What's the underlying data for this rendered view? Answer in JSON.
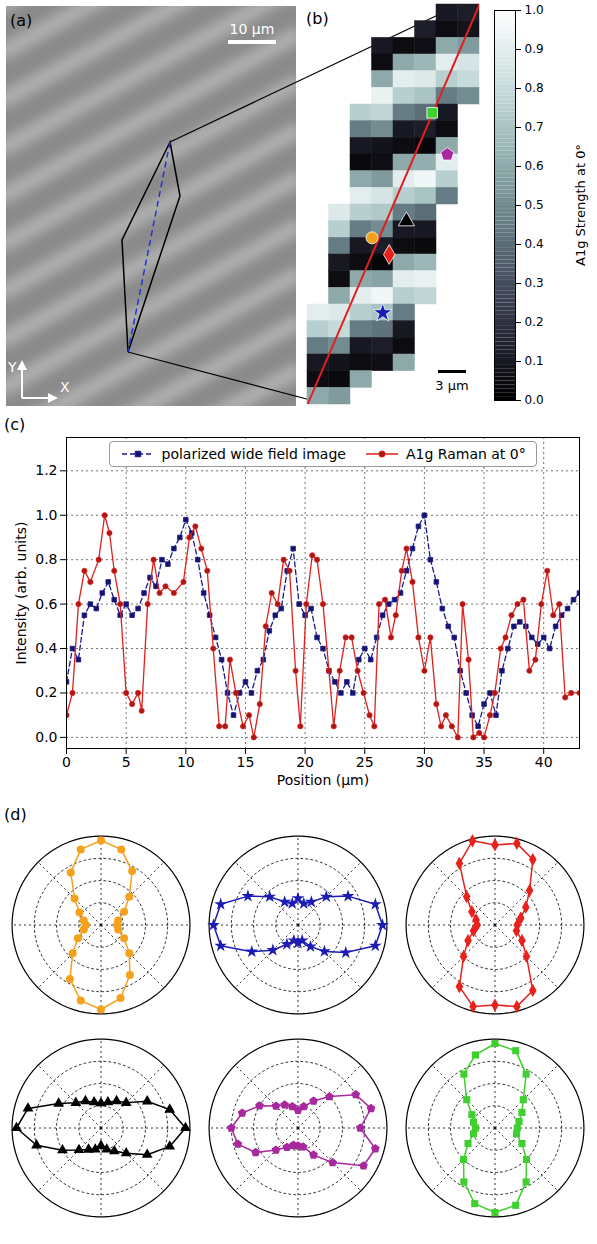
{
  "chart_data": [
    {
      "type": "image",
      "panel": "(a)",
      "scale_bar": "10 μm",
      "axis_labels": {
        "x": "X",
        "y": "Y"
      }
    },
    {
      "type": "heatmap",
      "panel": "(b)",
      "scale_bar": "3 μm",
      "colorbar_label": "A1g Strength at 0°",
      "colorbar_range": [
        0,
        1
      ],
      "colorbar_ticks": [
        {
          "value": 0,
          "label": "0.0"
        },
        0.1,
        0.2,
        0.3,
        0.4,
        0.5,
        0.6,
        0.7,
        0.8,
        0.9,
        {
          "value": 1,
          "label": "1.0"
        }
      ],
      "cells": [
        [
          null,
          null,
          null,
          null,
          null,
          null,
          0.1,
          0.12
        ],
        [
          null,
          null,
          null,
          null,
          null,
          0.12,
          0.05,
          0.08
        ],
        [
          null,
          null,
          null,
          0.1,
          0.05,
          0.06,
          0.6,
          0.55
        ],
        [
          null,
          null,
          null,
          0.05,
          0.6,
          0.65,
          0.9,
          0.85
        ],
        [
          null,
          null,
          null,
          0.6,
          0.9,
          0.88,
          0.75,
          0.8
        ],
        [
          null,
          null,
          null,
          0.92,
          0.75,
          0.7,
          0.45,
          0.5
        ],
        [
          null,
          null,
          0.75,
          0.78,
          0.45,
          0.4,
          0.1,
          null
        ],
        [
          null,
          null,
          0.45,
          0.5,
          0.1,
          0.12,
          0.05,
          null
        ],
        [
          null,
          null,
          0.1,
          0.08,
          0.05,
          0.03,
          0.6,
          null
        ],
        [
          null,
          null,
          0.04,
          0.06,
          0.6,
          0.62,
          0.9,
          null
        ],
        [
          null,
          null,
          0.6,
          0.55,
          0.9,
          0.95,
          0.75,
          null
        ],
        [
          null,
          null,
          0.9,
          0.85,
          0.75,
          0.7,
          0.45,
          null
        ],
        [
          null,
          0.88,
          0.75,
          0.72,
          0.45,
          0.4,
          null,
          null
        ],
        [
          null,
          0.75,
          0.45,
          0.5,
          0.1,
          0.1,
          null,
          null
        ],
        [
          null,
          0.45,
          0.1,
          0.12,
          0.05,
          0.04,
          null,
          null
        ],
        [
          null,
          0.1,
          0.05,
          0.03,
          0.6,
          0.65,
          null,
          null
        ],
        [
          null,
          0.05,
          0.6,
          0.58,
          0.9,
          0.92,
          null,
          null
        ],
        [
          null,
          0.6,
          0.9,
          0.95,
          0.75,
          0.78,
          null,
          null
        ],
        [
          0.9,
          0.88,
          0.75,
          0.7,
          0.45,
          null,
          null,
          null
        ],
        [
          0.75,
          0.8,
          0.45,
          0.42,
          0.1,
          null,
          null,
          null
        ],
        [
          0.45,
          0.5,
          0.1,
          0.12,
          0.05,
          null,
          null,
          null
        ],
        [
          0.1,
          0.08,
          0.05,
          0.06,
          0.6,
          null,
          null,
          null
        ],
        [
          0.05,
          0.04,
          0.6,
          null,
          null,
          null,
          null,
          null
        ],
        [
          0.6,
          0.55,
          null,
          null,
          null,
          null,
          null,
          null
        ]
      ],
      "profile_line": {
        "color": "#e02020",
        "x": [
          0,
          8
        ],
        "y": [
          24,
          0
        ]
      },
      "points": [
        {
          "marker": "square",
          "color": "#3fcf2f",
          "x": 5.8,
          "y": 6.5
        },
        {
          "marker": "pentagon",
          "color": "#a8289e",
          "x": 6.5,
          "y": 9
        },
        {
          "marker": "triangle",
          "color": "#000000",
          "x": 4.6,
          "y": 13
        },
        {
          "marker": "circle",
          "color": "#f5a11c",
          "x": 3.0,
          "y": 14
        },
        {
          "marker": "diamond",
          "color": "#e8211b",
          "x": 3.8,
          "y": 15
        },
        {
          "marker": "star",
          "color": "#1c1cb4",
          "x": 3.5,
          "y": 18.5
        }
      ]
    },
    {
      "type": "line",
      "panel": "(c)",
      "x_label": "Position (μm)",
      "y_label": "Intensity (arb. units)",
      "xlim": [
        0,
        43
      ],
      "xticks": [
        0,
        5,
        10,
        15,
        20,
        25,
        30,
        35,
        40
      ],
      "ylim": [
        -0.05,
        1.35
      ],
      "yticks": [
        {
          "value": 0,
          "label": "0.0"
        },
        0.2,
        0.4,
        0.6,
        0.8,
        {
          "value": 1,
          "label": "1.0"
        },
        1.2
      ],
      "grid": true,
      "legend": "top",
      "series": [
        {
          "name": "polarized wide field image",
          "color": "#1a1a8c",
          "marker": "square",
          "line_style": "dashed",
          "x": [
            0,
            0.5,
            1,
            1.5,
            2,
            2.5,
            3,
            3.5,
            4,
            4.5,
            5,
            5.5,
            6,
            6.5,
            7,
            7.5,
            8,
            8.5,
            9,
            9.5,
            10,
            10.5,
            11,
            11.5,
            12,
            12.5,
            13,
            13.5,
            14,
            14.5,
            15,
            15.5,
            16,
            16.5,
            17,
            17.5,
            18,
            18.5,
            19,
            19.5,
            20,
            20.5,
            21,
            21.5,
            22,
            22.5,
            23,
            23.5,
            24,
            24.5,
            25,
            25.5,
            26,
            26.5,
            27,
            27.5,
            28,
            28.5,
            29,
            29.5,
            30,
            30.5,
            31,
            31.5,
            32,
            32.5,
            33,
            33.5,
            34,
            34.5,
            35,
            35.5,
            36,
            36.5,
            37,
            37.5,
            38,
            38.5,
            39,
            39.5,
            40,
            40.5,
            41,
            41.5,
            42,
            42.5,
            43
          ],
          "values": [
            0.25,
            0.4,
            0.35,
            0.55,
            0.6,
            0.58,
            0.65,
            0.7,
            0.62,
            0.55,
            0.6,
            0.55,
            0.58,
            0.65,
            0.72,
            0.68,
            0.8,
            0.78,
            0.85,
            0.9,
            0.98,
            0.92,
            0.8,
            0.65,
            0.55,
            0.45,
            0.35,
            0.2,
            0.1,
            0.2,
            0.25,
            0.2,
            0.3,
            0.35,
            0.48,
            0.55,
            0.58,
            0.75,
            0.85,
            0.6,
            0.55,
            0.58,
            0.45,
            0.4,
            0.3,
            0.25,
            0.2,
            0.25,
            0.2,
            0.35,
            0.4,
            0.35,
            0.45,
            0.55,
            0.6,
            0.62,
            0.65,
            0.75,
            0.85,
            0.95,
            1.0,
            0.8,
            0.7,
            0.58,
            0.5,
            0.45,
            0.3,
            0.2,
            0.1,
            0.05,
            0.15,
            0.2,
            0.1,
            0.3,
            0.4,
            0.5,
            0.52,
            0.5,
            0.45,
            0.42,
            0.45,
            0.4,
            0.5,
            0.55,
            0.58,
            0.62,
            0.65
          ]
        },
        {
          "name": "A1g Raman at 0°",
          "color": "#e0201c",
          "marker": "circle",
          "line_style": "solid",
          "x": [
            0,
            0.5,
            1,
            1.5,
            2,
            2.7,
            3.2,
            3.6,
            4,
            4.5,
            5,
            5.5,
            6,
            6.3,
            6.8,
            7.3,
            7.8,
            8.3,
            9,
            9.8,
            10.3,
            10.8,
            11.3,
            11.8,
            12.3,
            12.8,
            13.3,
            13.7,
            14.2,
            14.8,
            15.3,
            15.7,
            16.2,
            16.7,
            17.2,
            17.7,
            18.2,
            18.7,
            19.2,
            19.6,
            20.1,
            20.6,
            21,
            21.5,
            22,
            22.4,
            22.9,
            23.4,
            23.9,
            24.4,
            24.9,
            25.4,
            25.8,
            26.2,
            26.7,
            27.2,
            27.6,
            28.1,
            28.5,
            29,
            29.5,
            30,
            30.5,
            31,
            31.4,
            31.8,
            32.3,
            32.8,
            33.2,
            33.7,
            34.1,
            34.6,
            35,
            35.5,
            35.9,
            36.4,
            36.8,
            37.3,
            37.8,
            38.3,
            38.8,
            39.3,
            39.8,
            40.3,
            40.8,
            41.3,
            41.8,
            42.3,
            43
          ],
          "values": [
            0.1,
            0.2,
            0.6,
            0.75,
            0.7,
            0.8,
            1.0,
            0.92,
            0.75,
            0.6,
            0.2,
            0.15,
            0.2,
            0.12,
            0.6,
            0.8,
            0.65,
            0.68,
            0.65,
            0.7,
            0.9,
            0.95,
            0.85,
            0.75,
            0.4,
            0.05,
            0.05,
            0.35,
            0.2,
            0.05,
            0.1,
            0.0,
            0.15,
            0.5,
            0.65,
            0.6,
            0.8,
            0.75,
            0.3,
            0.05,
            0.6,
            0.82,
            0.8,
            0.6,
            0.3,
            0.05,
            0.3,
            0.45,
            0.45,
            0.3,
            0.2,
            0.1,
            0.05,
            0.6,
            0.62,
            0.45,
            0.55,
            0.75,
            0.85,
            0.7,
            0.45,
            0.3,
            0.45,
            0.15,
            0.05,
            0.1,
            0.05,
            0.0,
            0.6,
            0.35,
            0.0,
            0.02,
            0.0,
            0.1,
            0.2,
            0.4,
            0.45,
            0.55,
            0.6,
            0.62,
            0.3,
            0.35,
            0.6,
            0.75,
            0.55,
            0.6,
            0.18,
            0.2,
            0.2
          ]
        }
      ]
    },
    {
      "type": "polar",
      "panel": "(d)",
      "tick_labels": false,
      "grid": true,
      "rlim": [
        0,
        1
      ],
      "rticks": [
        0.25,
        0.5,
        0.75,
        1
      ],
      "theta_ticks": [
        0,
        45,
        90,
        135,
        180,
        225,
        270,
        315
      ],
      "theta": [
        0,
        15,
        30,
        45,
        60,
        75,
        90,
        105,
        120,
        135,
        150,
        165,
        180,
        195,
        210,
        225,
        240,
        255,
        270,
        285,
        300,
        315,
        330,
        345
      ],
      "series": [
        {
          "marker": "circle",
          "color": "#f5a11c",
          "values": [
            0.18,
            0.2,
            0.3,
            0.45,
            0.7,
            0.88,
            0.95,
            0.88,
            0.68,
            0.42,
            0.28,
            0.2,
            0.17,
            0.2,
            0.3,
            0.45,
            0.7,
            0.88,
            0.95,
            0.85,
            0.65,
            0.45,
            0.3,
            0.2
          ]
        },
        {
          "marker": "star",
          "color": "#1c1cb4",
          "values": [
            0.95,
            0.9,
            0.65,
            0.45,
            0.3,
            0.25,
            0.3,
            0.25,
            0.3,
            0.45,
            0.65,
            0.9,
            0.95,
            0.9,
            0.6,
            0.4,
            0.25,
            0.18,
            0.2,
            0.18,
            0.28,
            0.42,
            0.62,
            0.9
          ]
        },
        {
          "marker": "diamond",
          "color": "#e8211b",
          "values": [
            0.25,
            0.3,
            0.4,
            0.55,
            0.85,
            0.95,
            0.9,
            0.98,
            0.8,
            0.45,
            0.3,
            0.22,
            0.2,
            0.25,
            0.35,
            0.5,
            0.8,
            0.95,
            0.9,
            0.95,
            0.85,
            0.5,
            0.35,
            0.25
          ]
        },
        {
          "marker": "triangle",
          "color": "#000000",
          "values": [
            0.95,
            0.8,
            0.6,
            0.4,
            0.35,
            0.3,
            0.28,
            0.3,
            0.35,
            0.4,
            0.55,
            0.85,
            0.95,
            0.75,
            0.5,
            0.35,
            0.28,
            0.25,
            0.2,
            0.25,
            0.3,
            0.4,
            0.6,
            0.8
          ]
        },
        {
          "marker": "pentagon",
          "color": "#a8289e",
          "values": [
            0.7,
            0.85,
            0.75,
            0.5,
            0.35,
            0.25,
            0.2,
            0.25,
            0.3,
            0.35,
            0.5,
            0.65,
            0.75,
            0.7,
            0.55,
            0.35,
            0.25,
            0.2,
            0.2,
            0.22,
            0.35,
            0.55,
            0.85,
            0.9
          ]
        },
        {
          "marker": "square",
          "color": "#3fcf2f",
          "values": [
            0.25,
            0.28,
            0.35,
            0.45,
            0.7,
            0.9,
            0.95,
            0.85,
            0.7,
            0.45,
            0.3,
            0.25,
            0.22,
            0.25,
            0.35,
            0.5,
            0.7,
            0.88,
            0.95,
            0.9,
            0.7,
            0.5,
            0.35,
            0.25
          ]
        }
      ]
    }
  ]
}
